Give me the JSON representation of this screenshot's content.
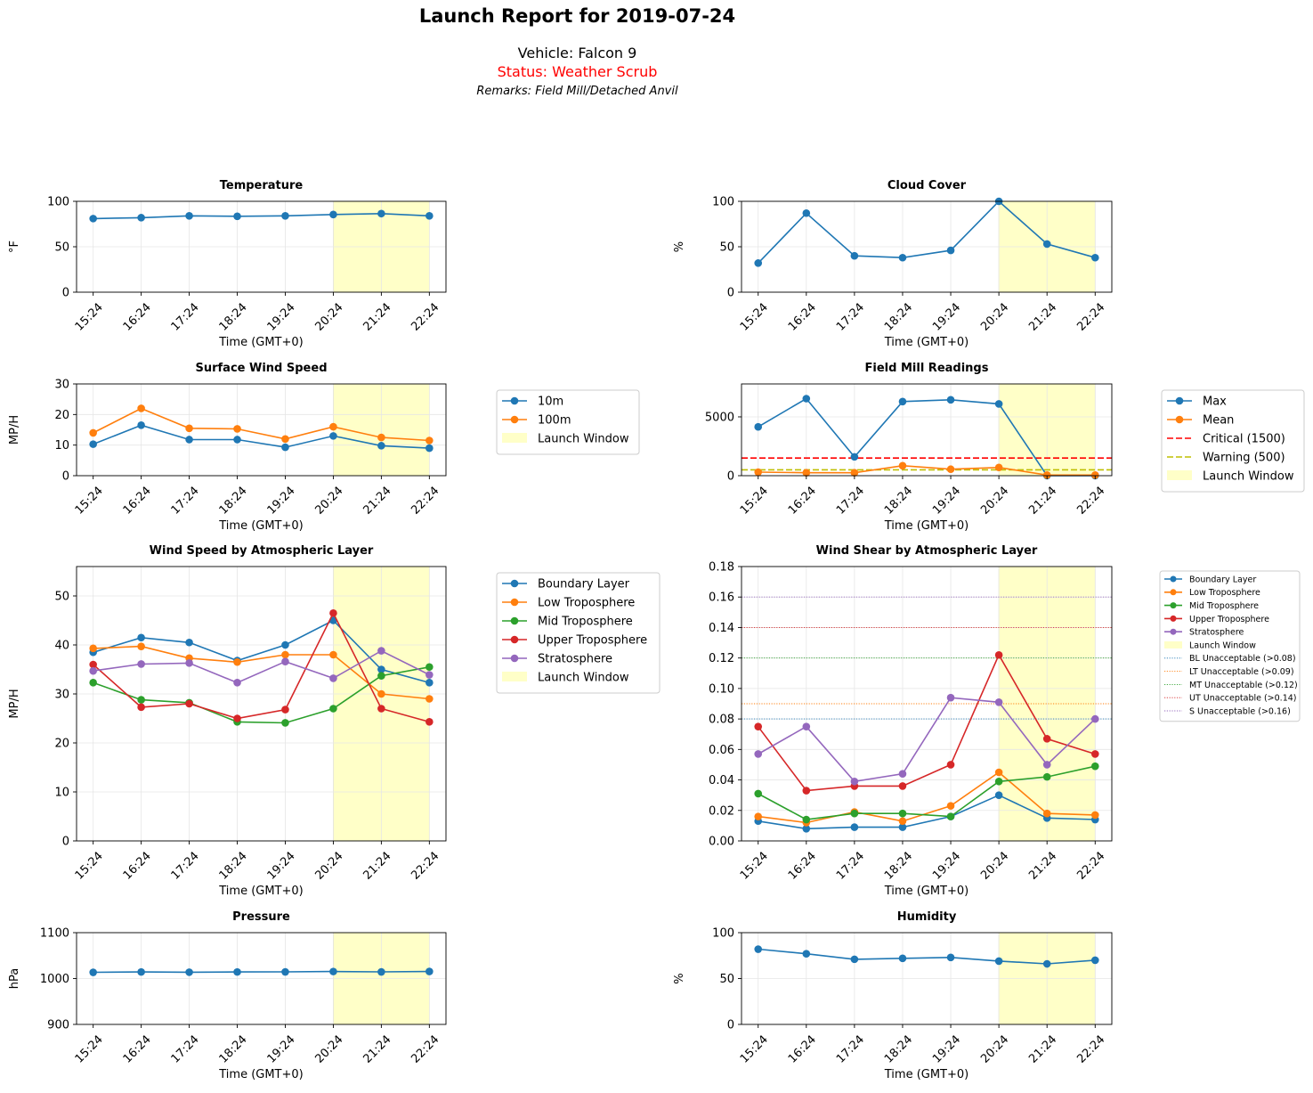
{
  "header": {
    "title": "Launch Report for 2019-07-24",
    "vehicle": "Vehicle: Falcon 9",
    "status": "Status: Weather Scrub",
    "status_color": "#ff0000",
    "remarks": "Remarks: Field Mill/Detached Anvil"
  },
  "colors": {
    "blue": "#1f77b4",
    "orange": "#ff7f0e",
    "green": "#2ca02c",
    "red": "#d62728",
    "purple": "#9467bd",
    "launch_window": "#ffffc8",
    "grid": "#e6e6e6"
  },
  "chart_data": [
    {
      "id": "temperature",
      "type": "line",
      "title": "Temperature",
      "xlabel": "Time (GMT+0)",
      "ylabel": "°F",
      "ylim": [
        0,
        100
      ],
      "yticks": [
        0,
        50,
        100
      ],
      "categories": [
        "15:24",
        "16:24",
        "17:24",
        "18:24",
        "19:24",
        "20:24",
        "21:24",
        "22:24"
      ],
      "launch_window": [
        "20:24",
        "22:24"
      ],
      "grid": true,
      "series": [
        {
          "color": "blue",
          "values": [
            81,
            82,
            84,
            83.5,
            84,
            85.5,
            86.5,
            84
          ]
        }
      ],
      "legend": null
    },
    {
      "id": "cloud-cover",
      "type": "line",
      "title": "Cloud Cover",
      "xlabel": "Time (GMT+0)",
      "ylabel": "%",
      "ylim": [
        0,
        100
      ],
      "yticks": [
        0,
        50,
        100
      ],
      "categories": [
        "15:24",
        "16:24",
        "17:24",
        "18:24",
        "19:24",
        "20:24",
        "21:24",
        "22:24"
      ],
      "launch_window": [
        "20:24",
        "22:24"
      ],
      "grid": true,
      "series": [
        {
          "color": "blue",
          "values": [
            32,
            87,
            40,
            38,
            46,
            100,
            53,
            38
          ]
        }
      ],
      "legend": null
    },
    {
      "id": "surface-wind",
      "type": "line",
      "title": "Surface Wind Speed",
      "xlabel": "Time (GMT+0)",
      "ylabel": "MP/H",
      "ylim": [
        0,
        30
      ],
      "yticks": [
        0,
        10,
        20,
        30
      ],
      "categories": [
        "15:24",
        "16:24",
        "17:24",
        "18:24",
        "19:24",
        "20:24",
        "21:24",
        "22:24"
      ],
      "launch_window": [
        "20:24",
        "22:24"
      ],
      "grid": true,
      "series": [
        {
          "name": "10m",
          "color": "blue",
          "values": [
            10.3,
            16.5,
            11.8,
            11.8,
            9.3,
            13,
            9.8,
            9
          ]
        },
        {
          "name": "100m",
          "color": "orange",
          "values": [
            14,
            22,
            15.5,
            15.3,
            12,
            16,
            12.5,
            11.5
          ]
        }
      ],
      "legend": {
        "placement": "outside-right",
        "window_label": "Launch Window",
        "size": "normal"
      }
    },
    {
      "id": "field-mill",
      "type": "line",
      "title": "Field Mill Readings",
      "xlabel": "",
      "ylabel": "",
      "ylim": [
        0,
        7800
      ],
      "yticks": [
        0,
        5000
      ],
      "categories": [
        "15:24",
        "16:24",
        "17:24",
        "18:24",
        "19:24",
        "20:24",
        "21:24",
        "22:24"
      ],
      "launch_window": [
        "20:24",
        "22:24"
      ],
      "grid": true,
      "series": [
        {
          "name": "Max",
          "color": "blue",
          "values": [
            4150,
            6550,
            1600,
            6300,
            6450,
            6100,
            0,
            0
          ]
        },
        {
          "name": "Mean",
          "color": "orange",
          "values": [
            300,
            250,
            250,
            850,
            550,
            700,
            50,
            50
          ]
        }
      ],
      "hlines": [
        {
          "name": "Critical (1500)",
          "value": 1500,
          "color": "#ff0000",
          "style": "dashed"
        },
        {
          "name": "Warning (500)",
          "value": 500,
          "color": "#bfbf00",
          "style": "dashed"
        }
      ],
      "legend": {
        "placement": "outside-right",
        "window_label": "Launch Window",
        "size": "normal"
      },
      "xlabel_shown": "Time (GMT+0)"
    },
    {
      "id": "wind-layers",
      "type": "line",
      "title": "Wind Speed by Atmospheric Layer",
      "xlabel": "Time (GMT+0)",
      "ylabel": "MP/H",
      "ylim": [
        0,
        56
      ],
      "yticks": [
        0,
        10,
        20,
        30,
        40,
        50
      ],
      "categories": [
        "15:24",
        "16:24",
        "17:24",
        "18:24",
        "19:24",
        "20:24",
        "21:24",
        "22:24"
      ],
      "launch_window": [
        "20:24",
        "22:24"
      ],
      "grid": true,
      "series": [
        {
          "name": "Boundary Layer",
          "color": "blue",
          "values": [
            38.5,
            41.5,
            40.5,
            36.8,
            40,
            45,
            35,
            32.3
          ]
        },
        {
          "name": "Low Troposphere",
          "color": "orange",
          "values": [
            39.3,
            39.7,
            37.3,
            36.5,
            38,
            38,
            30,
            29
          ]
        },
        {
          "name": "Mid Troposphere",
          "color": "green",
          "values": [
            32.3,
            28.8,
            28.2,
            24.3,
            24.1,
            27,
            33.7,
            35.5
          ]
        },
        {
          "name": "Upper Troposphere",
          "color": "red",
          "values": [
            36,
            27.3,
            28,
            25,
            26.8,
            46.5,
            27,
            24.3
          ]
        },
        {
          "name": "Stratosphere",
          "color": "purple",
          "values": [
            34.7,
            36.1,
            36.3,
            32.3,
            36.6,
            33.2,
            38.8,
            33.9
          ]
        }
      ],
      "legend": {
        "placement": "outside-right",
        "window_label": "Launch Window",
        "size": "normal"
      }
    },
    {
      "id": "wind-shear",
      "type": "line",
      "title": "Wind Shear by Atmospheric Layer",
      "xlabel": "Time (GMT+0)",
      "ylabel": "",
      "ylim": [
        0,
        0.18
      ],
      "yticks": [
        0,
        0.02,
        0.04,
        0.06,
        0.08,
        0.1,
        0.12,
        0.14,
        0.16,
        0.18
      ],
      "ytick_labels": [
        "0.00",
        "0.02",
        "0.04",
        "0.06",
        "0.08",
        "0.10",
        "0.12",
        "0.14",
        "0.16",
        "0.18"
      ],
      "categories": [
        "15:24",
        "16:24",
        "17:24",
        "18:24",
        "19:24",
        "20:24",
        "21:24",
        "22:24"
      ],
      "launch_window": [
        "20:24",
        "22:24"
      ],
      "grid": true,
      "series": [
        {
          "name": "Boundary Layer",
          "color": "blue",
          "values": [
            0.013,
            0.008,
            0.009,
            0.009,
            0.016,
            0.03,
            0.015,
            0.014
          ]
        },
        {
          "name": "Low Troposphere",
          "color": "orange",
          "values": [
            0.016,
            0.012,
            0.019,
            0.013,
            0.023,
            0.045,
            0.018,
            0.017
          ]
        },
        {
          "name": "Mid Troposphere",
          "color": "green",
          "values": [
            0.031,
            0.014,
            0.018,
            0.018,
            0.016,
            0.039,
            0.042,
            0.049
          ]
        },
        {
          "name": "Upper Troposphere",
          "color": "red",
          "values": [
            0.075,
            0.033,
            0.036,
            0.036,
            0.05,
            0.122,
            0.067,
            0.057
          ]
        },
        {
          "name": "Stratosphere",
          "color": "purple",
          "values": [
            0.057,
            0.075,
            0.039,
            0.044,
            0.094,
            0.091,
            0.05,
            0.08
          ]
        }
      ],
      "hlines": [
        {
          "name": "BL Unacceptable (>0.08)",
          "value": 0.08,
          "color": "blue",
          "style": "dotted"
        },
        {
          "name": "LT Unacceptable (>0.09)",
          "value": 0.09,
          "color": "orange",
          "style": "dotted"
        },
        {
          "name": "MT Unacceptable (>0.12)",
          "value": 0.12,
          "color": "green",
          "style": "dotted"
        },
        {
          "name": "UT Unacceptable (>0.14)",
          "value": 0.14,
          "color": "red",
          "style": "dotted"
        },
        {
          "name": "S Unacceptable (>0.16)",
          "value": 0.16,
          "color": "purple",
          "style": "dotted"
        }
      ],
      "legend": {
        "placement": "outside-right",
        "window_label": "Launch Window",
        "size": "small"
      }
    },
    {
      "id": "pressure",
      "type": "line",
      "title": "Pressure",
      "xlabel": "Time (GMT+0)",
      "ylabel": "hPa",
      "ylim": [
        900,
        1100
      ],
      "yticks": [
        900,
        1000,
        1100
      ],
      "categories": [
        "15:24",
        "16:24",
        "17:24",
        "18:24",
        "19:24",
        "20:24",
        "21:24",
        "22:24"
      ],
      "launch_window": [
        "20:24",
        "22:24"
      ],
      "grid": true,
      "series": [
        {
          "color": "blue",
          "values": [
            1013.5,
            1014.3,
            1013.8,
            1014.3,
            1014.5,
            1015.3,
            1014.5,
            1015.4
          ]
        }
      ],
      "legend": null
    },
    {
      "id": "humidity",
      "type": "line",
      "title": "Humidity",
      "xlabel": "Time (GMT+0)",
      "ylabel": "%",
      "ylim": [
        0,
        100
      ],
      "yticks": [
        0,
        50,
        100
      ],
      "categories": [
        "15:24",
        "16:24",
        "17:24",
        "18:24",
        "19:24",
        "20:24",
        "21:24",
        "22:24"
      ],
      "launch_window": [
        "20:24",
        "22:24"
      ],
      "grid": true,
      "series": [
        {
          "color": "blue",
          "values": [
            82,
            77,
            71,
            72,
            73,
            69,
            66,
            70
          ]
        }
      ],
      "legend": null
    }
  ]
}
